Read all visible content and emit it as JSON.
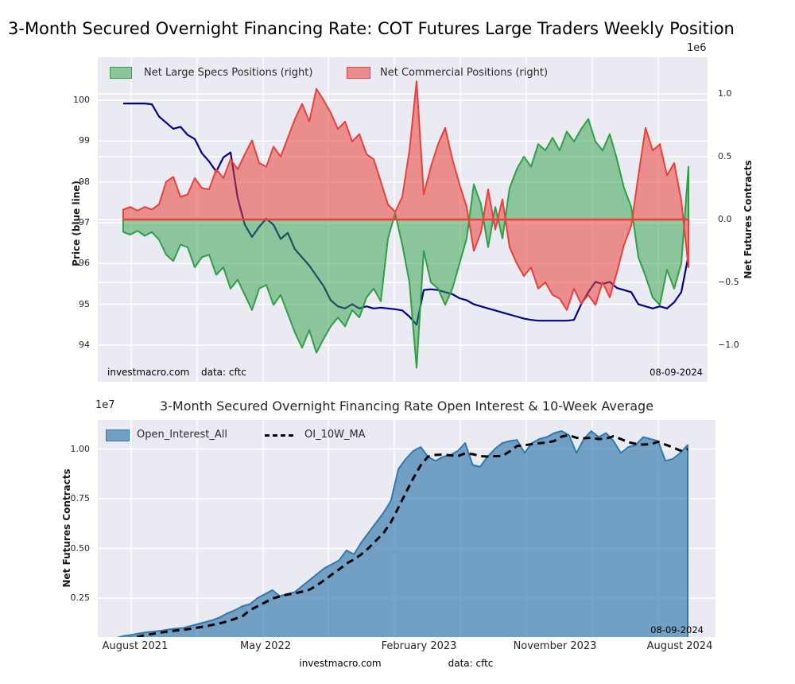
{
  "figure": {
    "title": "3-Month Secured Overnight Financing Rate: COT Futures Large Traders Weekly Position"
  },
  "footer": {
    "site": "investmacro.com",
    "source": "data: cftc"
  },
  "colors": {
    "plot_bg": "#eaeaf2",
    "grid": "#ffffff",
    "price_line": "#00008b",
    "specs_edge": "#2f9e44",
    "specs_fill": "rgba(46,160,67,0.5)",
    "comm_edge": "#e8403a",
    "comm_fill": "rgba(232,64,58,0.55)",
    "zero_line": "#e8403a",
    "oi_edge": "#3079ad",
    "oi_fill": "rgba(49,120,172,0.65)",
    "ma_line": "#000000"
  },
  "chart_data": [
    {
      "panel": "top",
      "type": "area+line",
      "legend": [
        {
          "label": "Net Large Specs Positions (right)",
          "swatch": "green-patch"
        },
        {
          "label": "Net Commercial Positions (right)",
          "swatch": "red-patch"
        }
      ],
      "ylabel_left": "Price (blue line)",
      "ylabel_right": "Net Futures Contracts",
      "right_scale_label": "1e6",
      "ylim_left": [
        93.1,
        100.8
      ],
      "ylim_right_millions": [
        -1.29,
        1.29
      ],
      "grid": true,
      "y_ticks_left": [
        {
          "label": "100",
          "v": 100
        },
        {
          "label": "99",
          "v": 99
        },
        {
          "label": "98",
          "v": 98
        },
        {
          "label": "97",
          "v": 97
        },
        {
          "label": "96",
          "v": 96
        },
        {
          "label": "95",
          "v": 95
        },
        {
          "label": "94",
          "v": 94
        }
      ],
      "y_ticks_right": [
        {
          "label": "1.0",
          "v": 1.0
        },
        {
          "label": "0.5",
          "v": 0.5
        },
        {
          "label": "0.0",
          "v": 0.0
        },
        {
          "label": "−0.5",
          "v": -0.5
        },
        {
          "label": "−1.0",
          "v": -1.0
        }
      ],
      "annotations": {
        "site": "investmacro.com",
        "source": "data: cftc",
        "date": "08-09-2024"
      },
      "series": [
        {
          "name": "Price (blue line)",
          "type": "line",
          "axis": "left",
          "values": [
            99.92,
            99.92,
            99.92,
            99.92,
            99.9,
            99.6,
            99.45,
            99.3,
            99.35,
            99.15,
            99.05,
            98.7,
            98.5,
            98.25,
            98.6,
            98.72,
            97.6,
            96.95,
            96.65,
            96.9,
            97.1,
            96.95,
            96.6,
            96.75,
            96.35,
            96.15,
            95.95,
            95.7,
            95.45,
            95.1,
            94.95,
            94.9,
            95.0,
            94.9,
            94.95,
            94.9,
            94.92,
            94.9,
            94.88,
            94.85,
            94.7,
            94.5,
            95.35,
            95.37,
            95.35,
            95.3,
            95.25,
            95.15,
            95.1,
            95.0,
            94.95,
            94.9,
            94.85,
            94.8,
            94.75,
            94.7,
            94.65,
            94.62,
            94.6,
            94.6,
            94.6,
            94.6,
            94.6,
            94.62,
            95.0,
            95.3,
            95.55,
            95.5,
            95.55,
            95.4,
            95.35,
            95.3,
            95.0,
            94.95,
            94.9,
            94.95,
            94.9,
            95.05,
            95.3,
            96.2
          ]
        },
        {
          "name": "Net Large Specs Positions (right)",
          "type": "area",
          "axis": "right_millions",
          "values": [
            -0.1,
            -0.12,
            -0.09,
            -0.13,
            -0.1,
            -0.16,
            -0.28,
            -0.33,
            -0.2,
            -0.22,
            -0.38,
            -0.3,
            -0.28,
            -0.44,
            -0.38,
            -0.55,
            -0.48,
            -0.6,
            -0.72,
            -0.55,
            -0.52,
            -0.68,
            -0.6,
            -0.75,
            -0.9,
            -1.02,
            -0.88,
            -1.06,
            -0.95,
            -0.85,
            -0.78,
            -0.85,
            -0.72,
            -0.78,
            -0.62,
            -0.55,
            -0.65,
            -0.15,
            0.05,
            -0.2,
            -0.5,
            -1.18,
            -0.25,
            -0.5,
            -0.55,
            -0.68,
            -0.55,
            -0.35,
            -0.15,
            0.28,
            0.12,
            -0.22,
            0.1,
            -0.15,
            0.25,
            0.4,
            0.5,
            0.42,
            0.6,
            0.55,
            0.65,
            0.55,
            0.7,
            0.62,
            0.72,
            0.8,
            0.62,
            0.55,
            0.68,
            0.48,
            0.25,
            0.1,
            -0.3,
            -0.45,
            -0.62,
            -0.68,
            -0.4,
            -0.55,
            -0.35,
            0.42
          ]
        },
        {
          "name": "Net Commercial Positions (right)",
          "type": "area",
          "axis": "right_millions",
          "values": [
            0.08,
            0.1,
            0.07,
            0.1,
            0.08,
            0.12,
            0.3,
            0.34,
            0.18,
            0.2,
            0.33,
            0.25,
            0.24,
            0.4,
            0.33,
            0.48,
            0.4,
            0.52,
            0.63,
            0.45,
            0.42,
            0.58,
            0.5,
            0.65,
            0.8,
            0.92,
            0.78,
            1.04,
            0.95,
            0.85,
            0.72,
            0.78,
            0.62,
            0.68,
            0.52,
            0.48,
            0.3,
            0.12,
            0.06,
            0.18,
            0.55,
            1.1,
            0.2,
            0.42,
            0.6,
            0.73,
            0.48,
            0.28,
            0.1,
            -0.25,
            -0.1,
            0.24,
            -0.08,
            0.16,
            -0.22,
            -0.35,
            -0.45,
            -0.38,
            -0.55,
            -0.5,
            -0.6,
            -0.63,
            -0.72,
            -0.55,
            -0.67,
            -0.6,
            -0.68,
            -0.5,
            -0.62,
            -0.42,
            -0.2,
            -0.05,
            0.35,
            0.73,
            0.55,
            0.6,
            0.35,
            0.45,
            0.15,
            -0.38
          ]
        }
      ]
    },
    {
      "panel": "bottom",
      "type": "area+line",
      "title": "3-Month Secured Overnight Financing Rate Open Interest & 10-Week Average",
      "left_scale_label": "1e7",
      "ylabel_left": "Net Futures Contracts",
      "ylim_1e7": [
        0.06,
        1.14
      ],
      "grid": true,
      "legend": [
        {
          "label": "Open_Interest_All",
          "swatch": "blue-patch"
        },
        {
          "label": "OI_10W_MA",
          "swatch": "black-dashes"
        }
      ],
      "y_ticks_left": [
        {
          "label": "1.00",
          "v": 1.0
        },
        {
          "label": "0.75",
          "v": 0.75
        },
        {
          "label": "0.50",
          "v": 0.5
        },
        {
          "label": "0.25",
          "v": 0.25
        }
      ],
      "x_ticks": [
        {
          "label": "August 2021"
        },
        {
          "label": "May 2022"
        },
        {
          "label": "February 2023"
        },
        {
          "label": "November 2023"
        },
        {
          "label": "August 2024"
        }
      ],
      "annotations": {
        "date": "08-09-2024"
      },
      "series": [
        {
          "name": "Open_Interest_All",
          "type": "area",
          "values": [
            0.035,
            0.04,
            0.05,
            0.06,
            0.065,
            0.072,
            0.078,
            0.082,
            0.086,
            0.092,
            0.097,
            0.1,
            0.11,
            0.12,
            0.13,
            0.14,
            0.155,
            0.175,
            0.19,
            0.21,
            0.22,
            0.25,
            0.27,
            0.29,
            0.26,
            0.27,
            0.28,
            0.31,
            0.34,
            0.37,
            0.4,
            0.42,
            0.44,
            0.49,
            0.47,
            0.53,
            0.58,
            0.63,
            0.68,
            0.74,
            0.9,
            0.95,
            0.99,
            1.01,
            0.96,
            0.94,
            0.96,
            0.97,
            0.99,
            1.03,
            0.92,
            0.91,
            0.96,
            1.0,
            1.03,
            1.04,
            1.045,
            0.98,
            1.03,
            1.05,
            1.06,
            1.08,
            1.09,
            1.07,
            0.98,
            1.05,
            1.09,
            1.06,
            1.08,
            1.04,
            0.98,
            1.01,
            1.02,
            1.06,
            1.05,
            1.04,
            0.94,
            0.95,
            0.98,
            1.02
          ]
        },
        {
          "name": "OI_10W_MA",
          "type": "dashed_line",
          "values": [
            0.028,
            0.033,
            0.04,
            0.048,
            0.049,
            0.057,
            0.065,
            0.071,
            0.077,
            0.082,
            0.087,
            0.091,
            0.096,
            0.102,
            0.108,
            0.116,
            0.124,
            0.134,
            0.146,
            0.16,
            0.19,
            0.209,
            0.228,
            0.248,
            0.258,
            0.268,
            0.274,
            0.282,
            0.292,
            0.314,
            0.34,
            0.368,
            0.394,
            0.424,
            0.444,
            0.47,
            0.502,
            0.54,
            0.578,
            0.632,
            0.706,
            0.78,
            0.852,
            0.918,
            0.962,
            0.97,
            0.972,
            0.968,
            0.964,
            0.978,
            0.974,
            0.964,
            0.962,
            0.964,
            0.964,
            0.988,
            1.015,
            1.019,
            1.025,
            1.029,
            1.033,
            1.04,
            1.062,
            1.07,
            1.056,
            1.054,
            1.056,
            1.05,
            1.052,
            1.064,
            1.05,
            1.034,
            1.026,
            1.022,
            1.024,
            1.036,
            1.022,
            1.008,
            0.992,
            1.0
          ]
        }
      ]
    }
  ]
}
